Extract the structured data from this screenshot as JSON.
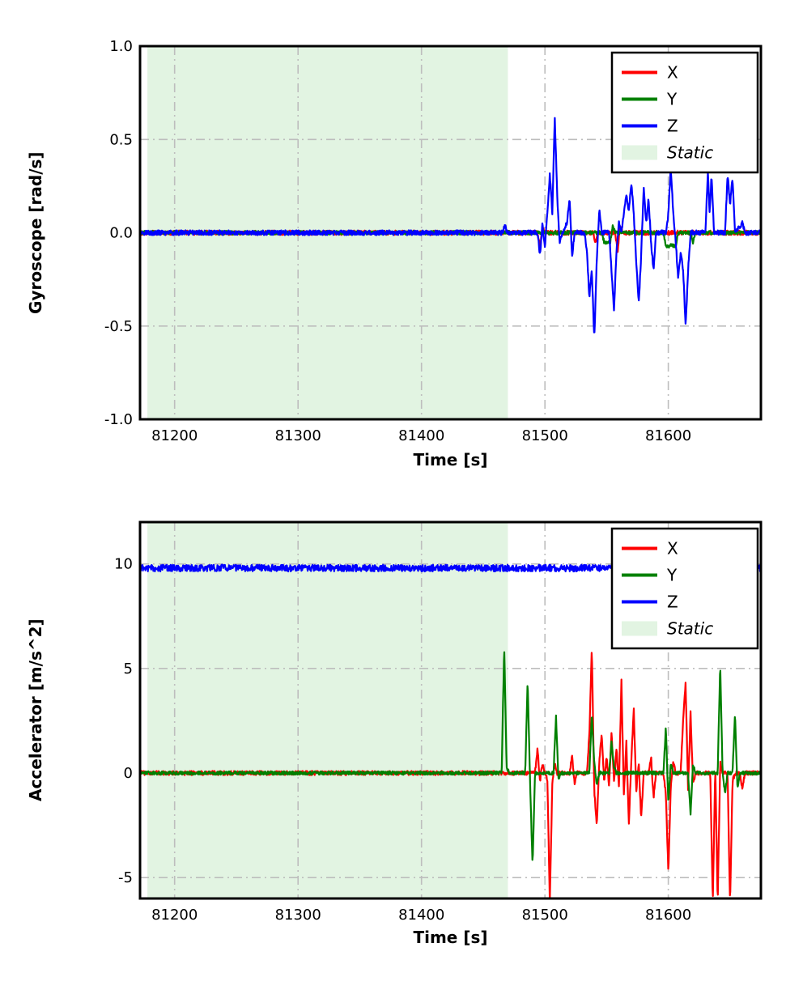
{
  "figure": {
    "background": "#ffffff",
    "frame_color": "#000000"
  },
  "chart_data": [
    {
      "type": "line",
      "title": "",
      "xlabel": "Time [s]",
      "ylabel": "Gyroscope [rad/s]",
      "xlim": [
        81172,
        81675
      ],
      "ylim": [
        -1.0,
        1.0
      ],
      "xticks": [
        81200,
        81300,
        81400,
        81500,
        81600
      ],
      "xtick_labels": [
        "81200",
        "81300",
        "81400",
        "81500",
        "81600"
      ],
      "yticks": [
        -1.0,
        -0.5,
        0.0,
        0.5,
        1.0
      ],
      "ytick_labels": [
        "-1.0",
        "-0.5",
        "0.0",
        "0.5",
        "1.0"
      ],
      "grid": true,
      "grid_color": "#bdbdbd",
      "legend_position": "upper right",
      "static_region": [
        81178,
        81470
      ],
      "static_color": "#e2f4e2",
      "legend": [
        {
          "label": "X",
          "type": "line",
          "color": "#ff0000",
          "italic": false
        },
        {
          "label": "Y",
          "type": "line",
          "color": "#008000",
          "italic": false
        },
        {
          "label": "Z",
          "type": "line",
          "color": "#0000ff",
          "italic": false
        },
        {
          "label": "Static",
          "type": "patch",
          "color": "#e2f4e2",
          "italic": true
        }
      ],
      "series": [
        {
          "name": "X",
          "color": "#ff0000",
          "noise": 0.012,
          "points": [
            [
              81172,
              0
            ],
            [
              81494,
              0
            ],
            [
              81496,
              -0.08
            ],
            [
              81498,
              0.03
            ],
            [
              81500,
              0
            ],
            [
              81539,
              0
            ],
            [
              81541,
              -0.05
            ],
            [
              81543,
              0
            ],
            [
              81557,
              0
            ],
            [
              81559,
              -0.1
            ],
            [
              81561,
              0.04
            ],
            [
              81563,
              0
            ],
            [
              81675,
              0
            ]
          ]
        },
        {
          "name": "Y",
          "color": "#008000",
          "noise": 0.01,
          "points": [
            [
              81172,
              0
            ],
            [
              81546,
              0
            ],
            [
              81548,
              -0.05
            ],
            [
              81553,
              -0.05
            ],
            [
              81555,
              0.04
            ],
            [
              81557,
              0
            ],
            [
              81596,
              0
            ],
            [
              81598,
              -0.07
            ],
            [
              81606,
              -0.07
            ],
            [
              81608,
              0
            ],
            [
              81618,
              0
            ],
            [
              81620,
              -0.05
            ],
            [
              81622,
              0
            ],
            [
              81675,
              0
            ]
          ]
        },
        {
          "name": "Z",
          "color": "#0000ff",
          "noise": 0.013,
          "points": [
            [
              81172,
              0
            ],
            [
              81466,
              0
            ],
            [
              81467.5,
              0.05
            ],
            [
              81469,
              0
            ],
            [
              81494,
              0
            ],
            [
              81496,
              -0.12
            ],
            [
              81498,
              0.05
            ],
            [
              81500,
              -0.08
            ],
            [
              81502,
              0.1
            ],
            [
              81504,
              0.32
            ],
            [
              81506,
              0.1
            ],
            [
              81508,
              0.61
            ],
            [
              81510,
              0.2
            ],
            [
              81512,
              -0.06
            ],
            [
              81514,
              0
            ],
            [
              81518,
              0.05
            ],
            [
              81520,
              0.19
            ],
            [
              81522,
              -0.13
            ],
            [
              81524,
              0
            ],
            [
              81532,
              0
            ],
            [
              81534,
              -0.1
            ],
            [
              81536,
              -0.35
            ],
            [
              81538,
              -0.2
            ],
            [
              81540,
              -0.57
            ],
            [
              81542,
              -0.15
            ],
            [
              81544,
              0.12
            ],
            [
              81546,
              0
            ],
            [
              81552,
              0
            ],
            [
              81554,
              -0.2
            ],
            [
              81556,
              -0.42
            ],
            [
              81558,
              -0.1
            ],
            [
              81560,
              0.06
            ],
            [
              81562,
              0
            ],
            [
              81564,
              0.1
            ],
            [
              81566,
              0.2
            ],
            [
              81568,
              0.12
            ],
            [
              81570,
              0.27
            ],
            [
              81572,
              0.1
            ],
            [
              81574,
              -0.15
            ],
            [
              81576,
              -0.38
            ],
            [
              81578,
              -0.12
            ],
            [
              81580,
              0.25
            ],
            [
              81582,
              0.05
            ],
            [
              81584,
              0.18
            ],
            [
              81586,
              -0.05
            ],
            [
              81588,
              -0.2
            ],
            [
              81590,
              0
            ],
            [
              81598,
              0
            ],
            [
              81600,
              0.1
            ],
            [
              81602,
              0.35
            ],
            [
              81604,
              0.1
            ],
            [
              81606,
              -0.05
            ],
            [
              81608,
              -0.25
            ],
            [
              81610,
              -0.1
            ],
            [
              81612,
              -0.2
            ],
            [
              81614,
              -0.5
            ],
            [
              81616,
              -0.2
            ],
            [
              81618,
              0
            ],
            [
              81630,
              0
            ],
            [
              81632,
              0.32
            ],
            [
              81633.5,
              0.1
            ],
            [
              81635,
              0.31
            ],
            [
              81637,
              0
            ],
            [
              81646,
              0
            ],
            [
              81648,
              0.32
            ],
            [
              81650,
              0.15
            ],
            [
              81652,
              0.3
            ],
            [
              81654,
              0
            ],
            [
              81660,
              0.05
            ],
            [
              81662,
              0
            ],
            [
              81675,
              0
            ]
          ]
        }
      ]
    },
    {
      "type": "line",
      "title": "",
      "xlabel": "Time [s]",
      "ylabel": "Accelerator [m/s^2]",
      "xlim": [
        81172,
        81675
      ],
      "ylim": [
        -6,
        12
      ],
      "xticks": [
        81200,
        81300,
        81400,
        81500,
        81600
      ],
      "xtick_labels": [
        "81200",
        "81300",
        "81400",
        "81500",
        "81600"
      ],
      "yticks": [
        -5,
        0,
        5,
        10
      ],
      "ytick_labels": [
        "-5",
        "0",
        "5",
        "10"
      ],
      "grid": true,
      "grid_color": "#bdbdbd",
      "legend_position": "upper right",
      "static_region": [
        81178,
        81470
      ],
      "static_color": "#e2f4e2",
      "legend": [
        {
          "label": "X",
          "type": "line",
          "color": "#ff0000",
          "italic": false
        },
        {
          "label": "Y",
          "type": "line",
          "color": "#008000",
          "italic": false
        },
        {
          "label": "Z",
          "type": "line",
          "color": "#0000ff",
          "italic": false
        },
        {
          "label": "Static",
          "type": "patch",
          "color": "#e2f4e2",
          "italic": true
        }
      ],
      "series": [
        {
          "name": "X",
          "color": "#ff0000",
          "noise": 0.1,
          "points": [
            [
              81172,
              0
            ],
            [
              81492,
              0
            ],
            [
              81494,
              1.2
            ],
            [
              81496,
              -0.4
            ],
            [
              81498,
              0.5
            ],
            [
              81500,
              0
            ],
            [
              81502,
              -0.3
            ],
            [
              81504,
              -6.2
            ],
            [
              81506,
              -0.5
            ],
            [
              81508,
              0.4
            ],
            [
              81510,
              0
            ],
            [
              81520,
              0
            ],
            [
              81522,
              0.8
            ],
            [
              81524,
              -0.5
            ],
            [
              81526,
              0
            ],
            [
              81534,
              0
            ],
            [
              81536,
              1.8
            ],
            [
              81538,
              6.0
            ],
            [
              81540,
              -0.8
            ],
            [
              81542,
              -2.6
            ],
            [
              81544,
              0.5
            ],
            [
              81546,
              1.9
            ],
            [
              81548,
              -0.4
            ],
            [
              81550,
              0.8
            ],
            [
              81552,
              -0.6
            ],
            [
              81554,
              2.0
            ],
            [
              81556,
              -0.5
            ],
            [
              81558,
              1.2
            ],
            [
              81560,
              -0.7
            ],
            [
              81562,
              4.4
            ],
            [
              81564,
              -1.0
            ],
            [
              81566,
              1.5
            ],
            [
              81568,
              -2.5
            ],
            [
              81570,
              0.6
            ],
            [
              81572,
              3.1
            ],
            [
              81574,
              -0.9
            ],
            [
              81576,
              0.5
            ],
            [
              81578,
              -2.2
            ],
            [
              81580,
              0
            ],
            [
              81584,
              0
            ],
            [
              81586,
              0.8
            ],
            [
              81588,
              -1.2
            ],
            [
              81590,
              0
            ],
            [
              81596,
              0
            ],
            [
              81598,
              -1.0
            ],
            [
              81600,
              -4.8
            ],
            [
              81602,
              -0.6
            ],
            [
              81604,
              0.5
            ],
            [
              81606,
              0
            ],
            [
              81610,
              0
            ],
            [
              81612,
              2.5
            ],
            [
              81614,
              4.3
            ],
            [
              81616,
              -0.8
            ],
            [
              81618,
              2.9
            ],
            [
              81620,
              -0.5
            ],
            [
              81622,
              0
            ],
            [
              81634,
              0
            ],
            [
              81636,
              -6.3
            ],
            [
              81638,
              0.3
            ],
            [
              81640,
              -6.3
            ],
            [
              81642,
              0.5
            ],
            [
              81644,
              0
            ],
            [
              81648,
              0
            ],
            [
              81650,
              -6.3
            ],
            [
              81652,
              -0.4
            ],
            [
              81654,
              0
            ],
            [
              81658,
              0
            ],
            [
              81660,
              -0.8
            ],
            [
              81662,
              0
            ],
            [
              81675,
              0
            ]
          ]
        },
        {
          "name": "Y",
          "color": "#008000",
          "noise": 0.08,
          "points": [
            [
              81172,
              0
            ],
            [
              81465,
              0
            ],
            [
              81467,
              6.1
            ],
            [
              81469,
              0.3
            ],
            [
              81471,
              0
            ],
            [
              81484,
              0
            ],
            [
              81486,
              4.5
            ],
            [
              81488,
              -0.5
            ],
            [
              81490,
              -4.4
            ],
            [
              81492,
              0
            ],
            [
              81507,
              0
            ],
            [
              81509,
              2.7
            ],
            [
              81511,
              -0.3
            ],
            [
              81513,
              0
            ],
            [
              81536,
              0
            ],
            [
              81538,
              2.8
            ],
            [
              81540,
              0.5
            ],
            [
              81542,
              -0.6
            ],
            [
              81544,
              0
            ],
            [
              81552,
              0
            ],
            [
              81554,
              1.5
            ],
            [
              81556,
              0.3
            ],
            [
              81558,
              0
            ],
            [
              81596,
              0
            ],
            [
              81598,
              2.2
            ],
            [
              81600,
              -1.5
            ],
            [
              81602,
              0.5
            ],
            [
              81604,
              0
            ],
            [
              81616,
              0
            ],
            [
              81618,
              -2.0
            ],
            [
              81620,
              0.4
            ],
            [
              81622,
              0
            ],
            [
              81640,
              0
            ],
            [
              81642,
              5.2
            ],
            [
              81644,
              0
            ],
            [
              81646,
              -1.0
            ],
            [
              81648,
              0
            ],
            [
              81652,
              0
            ],
            [
              81654,
              2.9
            ],
            [
              81656,
              -0.8
            ],
            [
              81658,
              0
            ],
            [
              81675,
              0
            ]
          ]
        },
        {
          "name": "Z",
          "color": "#0000ff",
          "noise": 0.16,
          "points": [
            [
              81172,
              9.8
            ],
            [
              81675,
              9.8
            ]
          ]
        }
      ]
    }
  ]
}
